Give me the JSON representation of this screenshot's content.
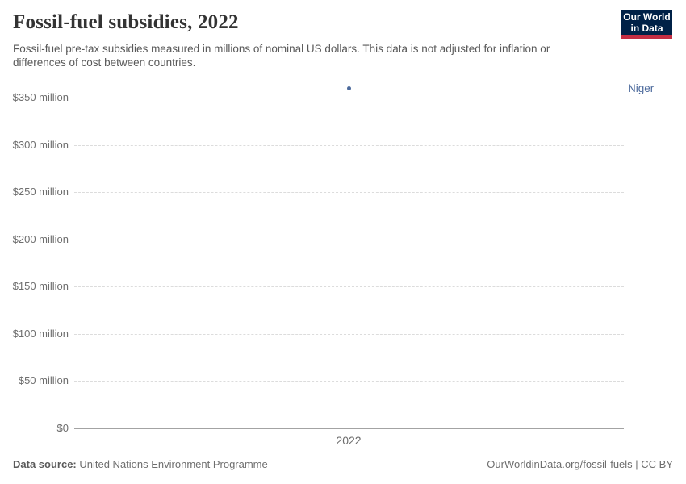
{
  "header": {
    "title": "Fossil-fuel subsidies, 2022",
    "subtitle": "Fossil-fuel pre-tax subsidies measured in millions of nominal US dollars. This data is not adjusted for inflation or differences of cost between countries.",
    "logo": {
      "line1": "Our World",
      "line2": "in Data"
    }
  },
  "chart_data": {
    "type": "scatter",
    "title": "Fossil-fuel subsidies, 2022",
    "x": [
      2022
    ],
    "xtick_labels": [
      "2022"
    ],
    "series": [
      {
        "name": "Niger",
        "x": 2022,
        "value": 360,
        "unit": "million US$"
      }
    ],
    "yticks": [
      {
        "value": 0,
        "label": "$0"
      },
      {
        "value": 50,
        "label": "$50 million"
      },
      {
        "value": 100,
        "label": "$100 million"
      },
      {
        "value": 150,
        "label": "$150 million"
      },
      {
        "value": 200,
        "label": "$200 million"
      },
      {
        "value": 250,
        "label": "$250 million"
      },
      {
        "value": 300,
        "label": "$300 million"
      },
      {
        "value": 350,
        "label": "$350 million"
      }
    ],
    "ylim": [
      0,
      370
    ],
    "grid": "horizontal-dashed",
    "legend_position": "right-entity-label",
    "colors": {
      "point": "#4c6a9c",
      "entity_label": "#4c6a9c",
      "gridline": "#dcdcdc",
      "axis_line": "#a3a3a3",
      "logo_bg": "#002147",
      "logo_accent": "#c52e43"
    }
  },
  "footer": {
    "source_label": "Data source:",
    "source_value": " United Nations Environment Programme",
    "link": "OurWorldinData.org/fossil-fuels | CC BY"
  }
}
